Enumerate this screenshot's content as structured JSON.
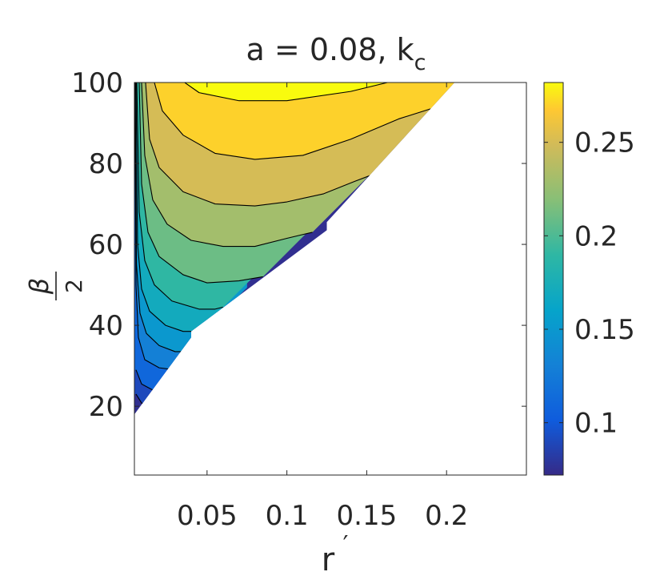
{
  "chart_data": {
    "type": "contour",
    "title": "a = 0.08,  k",
    "title_subscript": "c",
    "xlabel": "r",
    "xlabel_prime": "′",
    "ylabel_numerator": "β",
    "ylabel_denominator": "2",
    "xlim": [
      0.0045,
      0.25
    ],
    "ylim": [
      3,
      100
    ],
    "xticks": [
      0.05,
      0.1,
      0.15,
      0.2
    ],
    "xtick_labels": [
      "0.05",
      "0.1",
      "0.15",
      "0.2"
    ],
    "yticks": [
      20,
      40,
      60,
      80,
      100
    ],
    "ytick_labels": [
      "20",
      "40",
      "60",
      "80",
      "100"
    ],
    "colorbar": {
      "range": [
        0.072,
        0.282
      ],
      "ticks": [
        0.1,
        0.15,
        0.2,
        0.25
      ],
      "tick_labels": [
        "0.1",
        "0.15",
        "0.2",
        "0.25"
      ],
      "colormap": "parula"
    },
    "valid_region_boundary": [
      [
        0.0045,
        18
      ],
      [
        0.04,
        37
      ],
      [
        0.04,
        38.5
      ],
      [
        0.125,
        63.5
      ],
      [
        0.125,
        65.5
      ],
      [
        0.205,
        100
      ]
    ],
    "levels": [
      0.08,
      0.1,
      0.12,
      0.14,
      0.16,
      0.18,
      0.2,
      0.22,
      0.24,
      0.26,
      0.28
    ],
    "contours": [
      {
        "level": 0.28,
        "points": [
          [
            0.036,
            100
          ],
          [
            0.045,
            97.5
          ],
          [
            0.07,
            95.5
          ],
          [
            0.1,
            95.5
          ],
          [
            0.14,
            97.8
          ],
          [
            0.163,
            100
          ]
        ]
      },
      {
        "level": 0.26,
        "points": [
          [
            0.017,
            100
          ],
          [
            0.022,
            93
          ],
          [
            0.035,
            87
          ],
          [
            0.055,
            82.5
          ],
          [
            0.08,
            81
          ],
          [
            0.11,
            82
          ],
          [
            0.14,
            86
          ],
          [
            0.17,
            91
          ],
          [
            0.19,
            93.5
          ]
        ]
      },
      {
        "level": 0.24,
        "points": [
          [
            0.0115,
            100
          ],
          [
            0.014,
            86
          ],
          [
            0.02,
            79
          ],
          [
            0.035,
            73
          ],
          [
            0.055,
            70
          ],
          [
            0.08,
            69.5
          ],
          [
            0.1,
            70.5
          ],
          [
            0.123,
            72.5
          ],
          [
            0.142,
            75.5
          ],
          [
            0.152,
            77
          ]
        ]
      },
      {
        "level": 0.22,
        "points": [
          [
            0.009,
            100
          ],
          [
            0.011,
            82
          ],
          [
            0.016,
            71
          ],
          [
            0.025,
            65
          ],
          [
            0.04,
            61
          ],
          [
            0.06,
            59.5
          ],
          [
            0.08,
            59.5
          ],
          [
            0.1,
            61.5
          ],
          [
            0.116,
            63
          ]
        ]
      },
      {
        "level": 0.2,
        "points": [
          [
            0.0075,
            100
          ],
          [
            0.009,
            75
          ],
          [
            0.013,
            63
          ],
          [
            0.02,
            57
          ],
          [
            0.035,
            52.5
          ],
          [
            0.05,
            50.5
          ],
          [
            0.07,
            51
          ],
          [
            0.085,
            52
          ]
        ]
      },
      {
        "level": 0.18,
        "points": [
          [
            0.006,
            100
          ],
          [
            0.0075,
            68
          ],
          [
            0.011,
            56
          ],
          [
            0.017,
            50
          ],
          [
            0.028,
            46
          ],
          [
            0.045,
            44
          ],
          [
            0.055,
            44
          ],
          [
            0.06,
            44.5
          ]
        ]
      },
      {
        "level": 0.16,
        "points": [
          [
            0.0055,
            100
          ],
          [
            0.0065,
            60
          ],
          [
            0.009,
            49
          ],
          [
            0.014,
            43.5
          ],
          [
            0.024,
            40
          ],
          [
            0.035,
            38.5
          ],
          [
            0.045,
            38.5
          ]
        ]
      },
      {
        "level": 0.14,
        "points": [
          [
            0.005,
            100
          ],
          [
            0.0058,
            55
          ],
          [
            0.008,
            43
          ],
          [
            0.012,
            38
          ],
          [
            0.02,
            35
          ],
          [
            0.03,
            33.5
          ],
          [
            0.035,
            33.5
          ]
        ]
      },
      {
        "level": 0.12,
        "points": [
          [
            0.0048,
            100
          ],
          [
            0.0055,
            50
          ],
          [
            0.007,
            37
          ],
          [
            0.011,
            31.5
          ],
          [
            0.02,
            29.5
          ],
          [
            0.03,
            29
          ]
        ]
      },
      {
        "level": 0.1,
        "points": [
          [
            0.0055,
            29
          ],
          [
            0.009,
            25.5
          ],
          [
            0.016,
            24
          ],
          [
            0.023,
            23.5
          ]
        ]
      },
      {
        "level": 0.08,
        "points": [
          [
            0.0055,
            23
          ],
          [
            0.009,
            20.8
          ],
          [
            0.011,
            20.5
          ]
        ]
      }
    ]
  }
}
